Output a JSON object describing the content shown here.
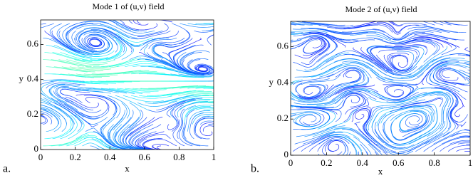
{
  "chart_data": [
    {
      "type": "streamplot",
      "panel_label": "a.",
      "title": "Mode 1 of (u,v) field",
      "xlabel": "x",
      "ylabel": "y",
      "xlim": [
        0,
        1
      ],
      "ylim": [
        0,
        0.74
      ],
      "xticks": [
        0,
        0.2,
        0.4,
        0.6,
        0.8,
        1
      ],
      "yticks": [
        0,
        0.2,
        0.4,
        0.6
      ],
      "colormap": "jet"
    },
    {
      "type": "streamplot",
      "panel_label": "b.",
      "title": "Mode 2 of (u,v) field",
      "xlabel": "x",
      "ylabel": "y",
      "xlim": [
        0,
        1
      ],
      "ylim": [
        0,
        0.74
      ],
      "xticks": [
        0,
        0.2,
        0.4,
        0.6,
        0.8,
        1
      ],
      "yticks": [
        0,
        0.2,
        0.4,
        0.6
      ],
      "colormap": "jet"
    }
  ]
}
